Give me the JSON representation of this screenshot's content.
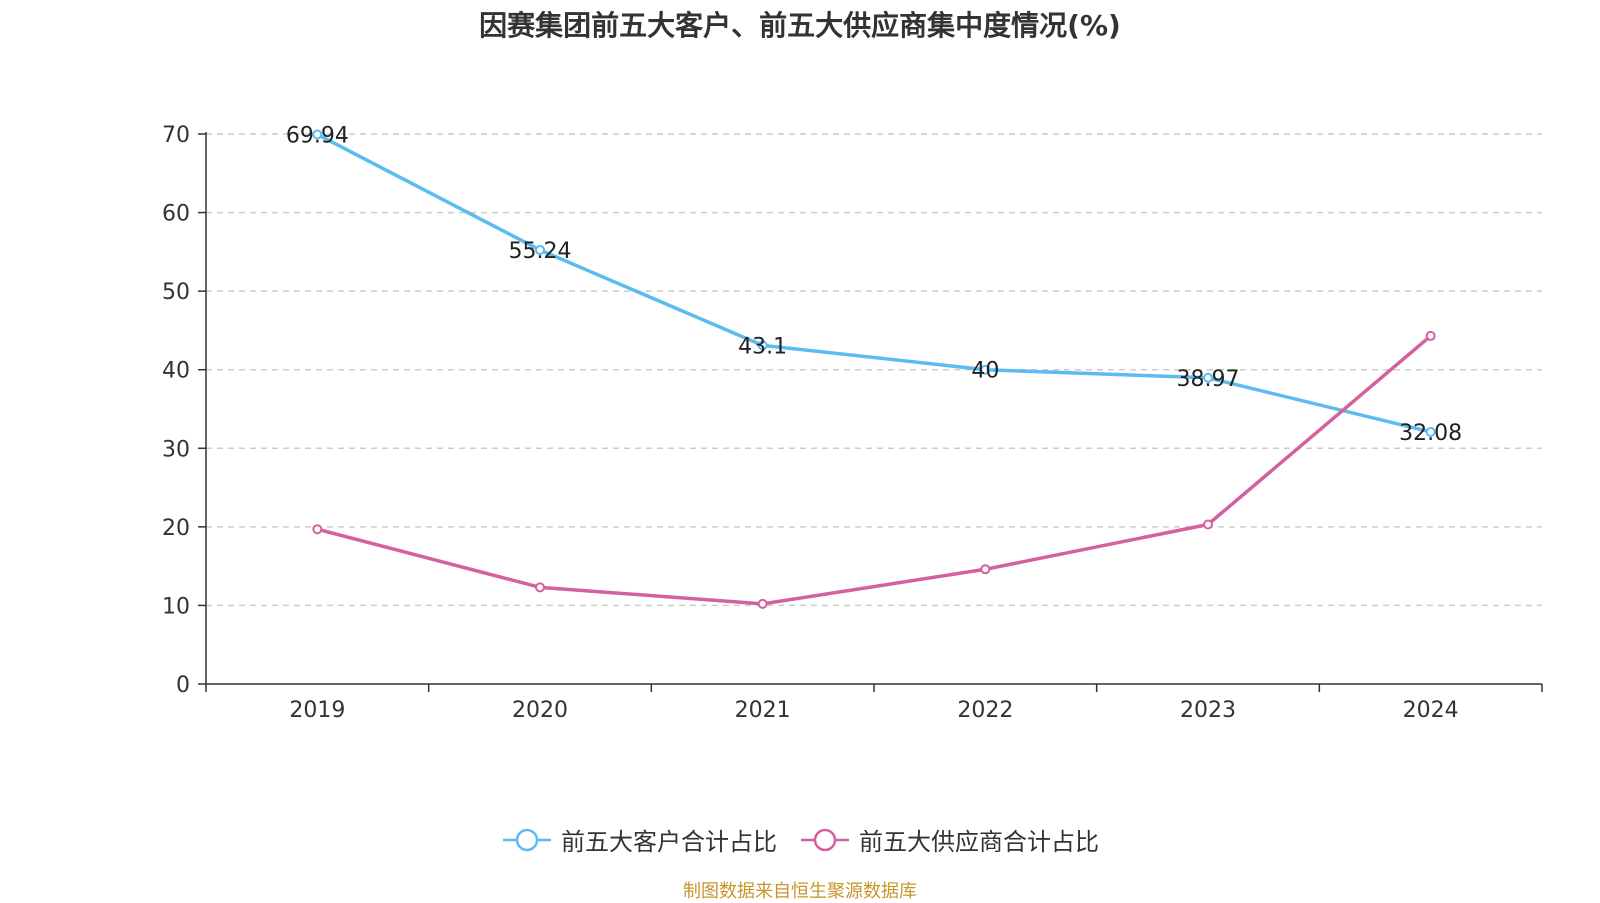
{
  "chart_data": {
    "type": "line",
    "title": "因赛集团前五大客户、前五大供应商集中度情况(%)",
    "categories": [
      "2019",
      "2020",
      "2021",
      "2022",
      "2023",
      "2024"
    ],
    "ylim": [
      0,
      70
    ],
    "yticks": [
      0,
      10,
      20,
      30,
      40,
      50,
      60,
      70
    ],
    "grid": true,
    "legend_position": "bottom",
    "series": [
      {
        "name": "前五大客户合计占比",
        "color": "#5bbcf0",
        "values": [
          69.94,
          55.24,
          43.1,
          40,
          38.97,
          32.08
        ],
        "labels": [
          "69.94",
          "55.24",
          "43.1",
          "40",
          "38.97",
          "32.08"
        ]
      },
      {
        "name": "前五大供应商合计占比",
        "color": "#d4609f",
        "values": [
          19.7,
          12.3,
          10.2,
          14.6,
          20.3,
          44.3
        ]
      }
    ],
    "source": "制图数据来自恒生聚源数据库"
  }
}
